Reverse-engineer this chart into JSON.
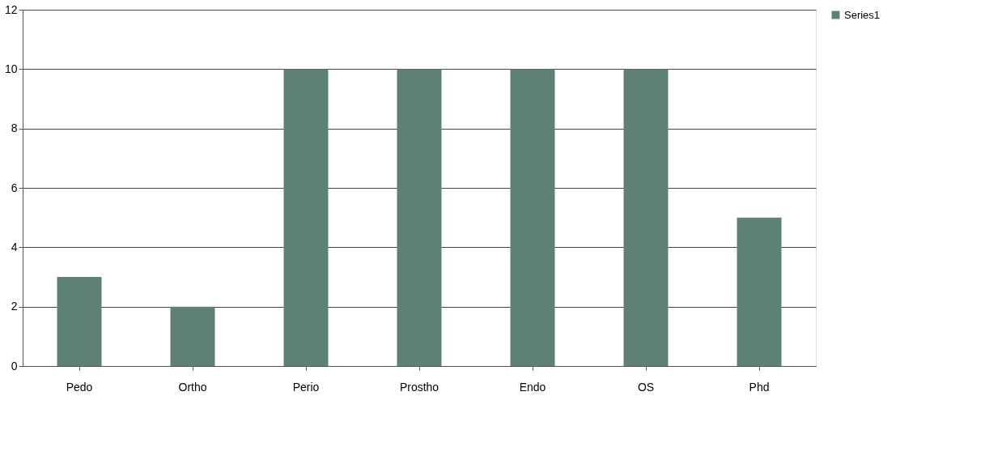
{
  "chart_data": {
    "type": "bar",
    "categories": [
      "Pedo",
      "Ortho",
      "Perio",
      "Prostho",
      "Endo",
      "OS",
      "Phd"
    ],
    "series": [
      {
        "name": "Series1",
        "color": "#5f8075",
        "values": [
          3,
          2,
          10,
          10,
          10,
          10,
          5
        ]
      }
    ],
    "ylim": [
      0,
      12
    ],
    "yticks": [
      0,
      2,
      4,
      6,
      8,
      10,
      12
    ],
    "grid": "y",
    "legend": "right"
  }
}
